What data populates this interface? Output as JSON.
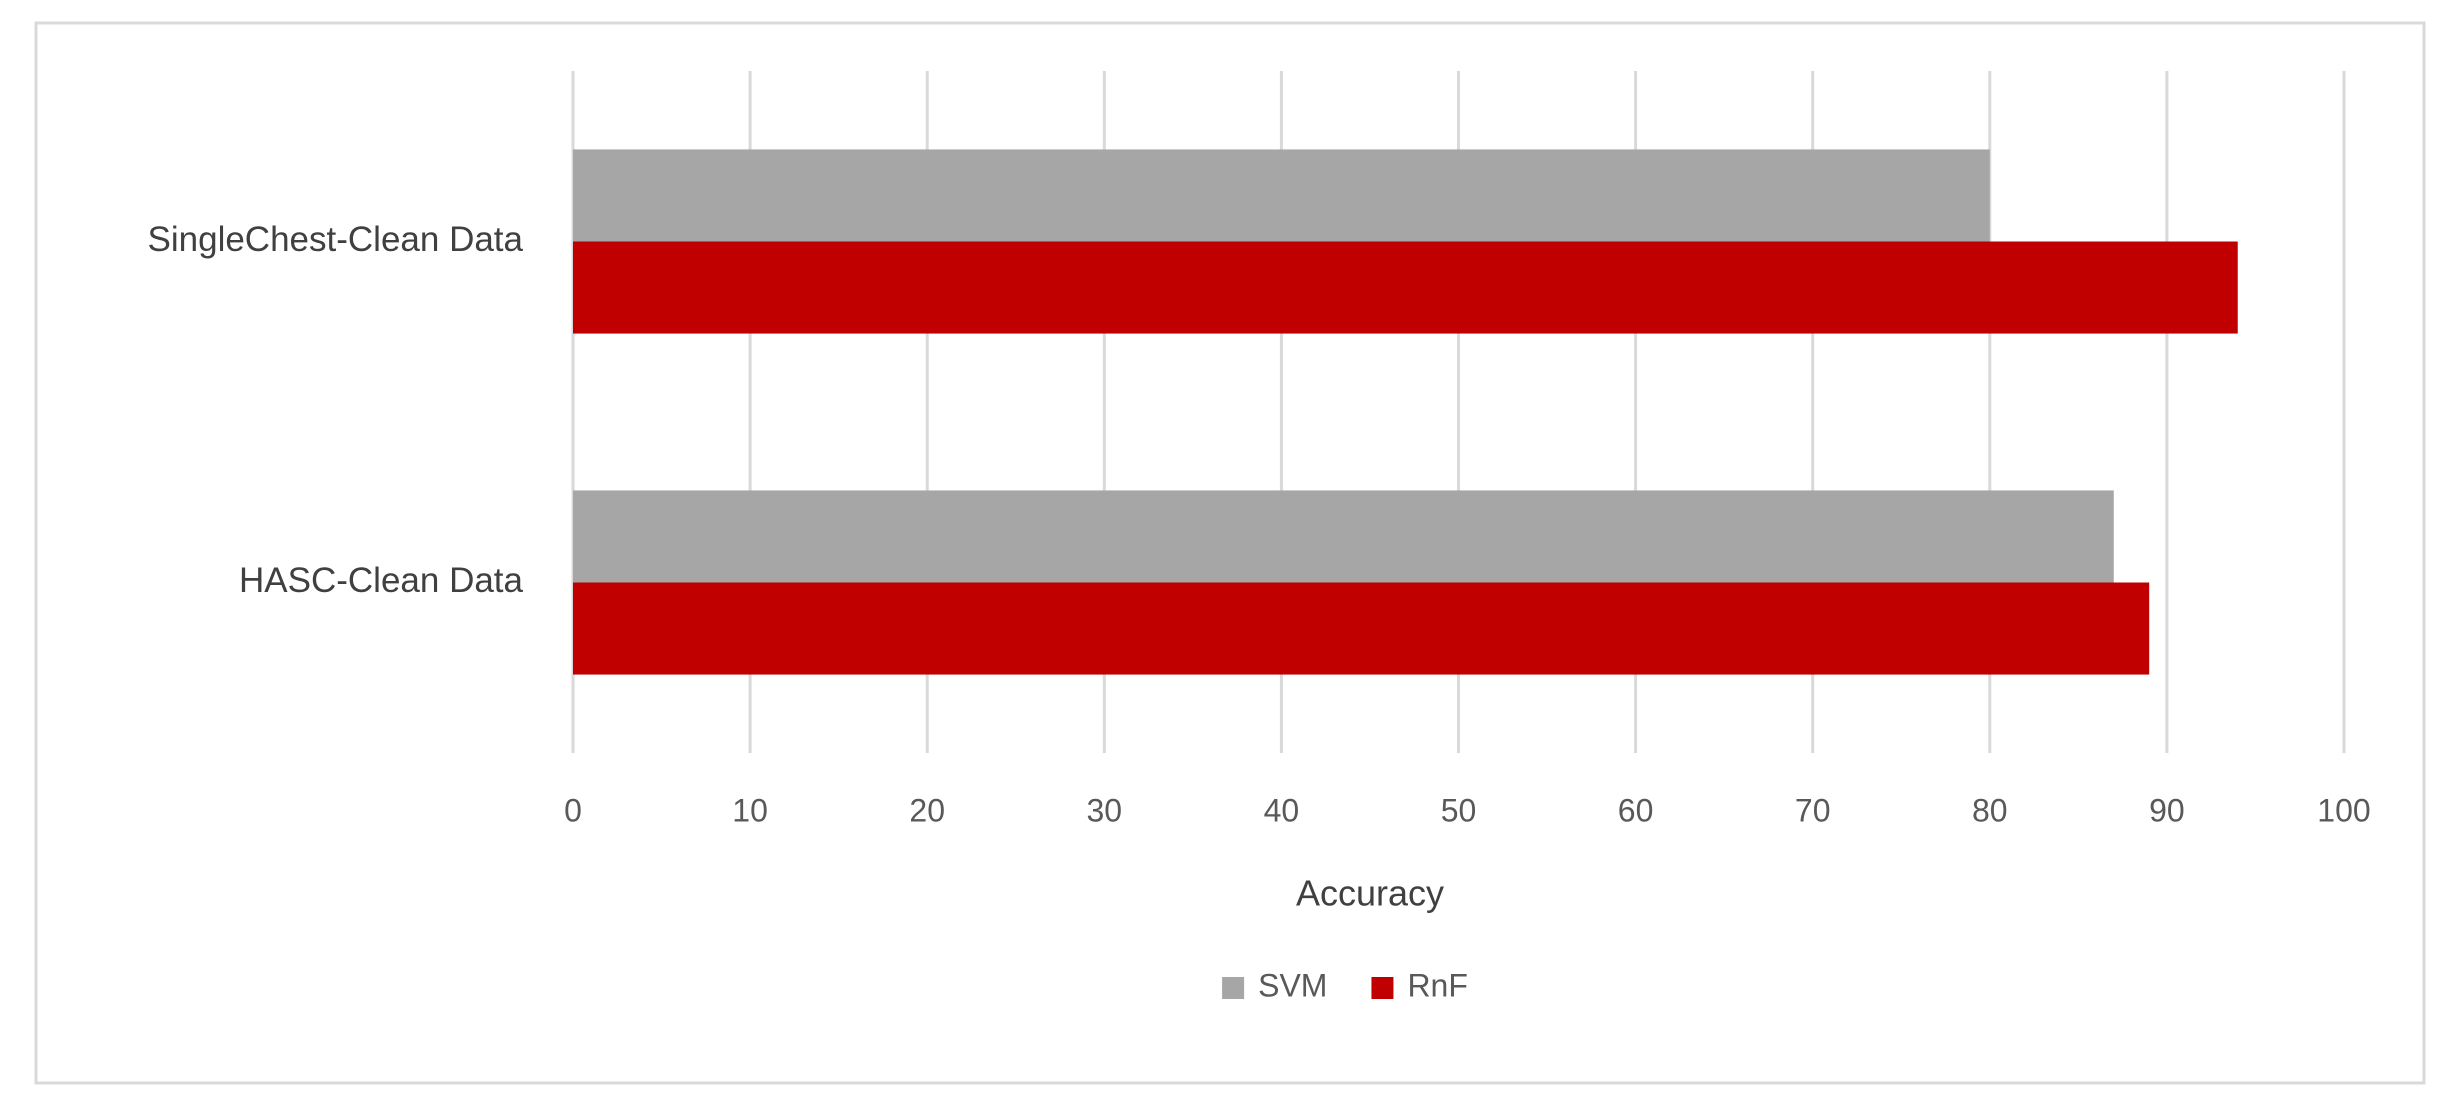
{
  "chart_data": {
    "type": "bar",
    "orientation": "horizontal",
    "categories": [
      "SingleChest-Clean Data",
      "HASC-Clean Data"
    ],
    "series": [
      {
        "name": "SVM",
        "color": "#a6a6a6",
        "values": [
          80,
          87
        ]
      },
      {
        "name": "RnF",
        "color": "#c00000",
        "values": [
          94,
          89
        ]
      }
    ],
    "xlabel": "Accuracy",
    "xlim": [
      0,
      100
    ],
    "xticks": [
      0,
      10,
      20,
      30,
      40,
      50,
      60,
      70,
      80,
      90,
      100
    ],
    "grid": true,
    "legend": "bottom"
  }
}
